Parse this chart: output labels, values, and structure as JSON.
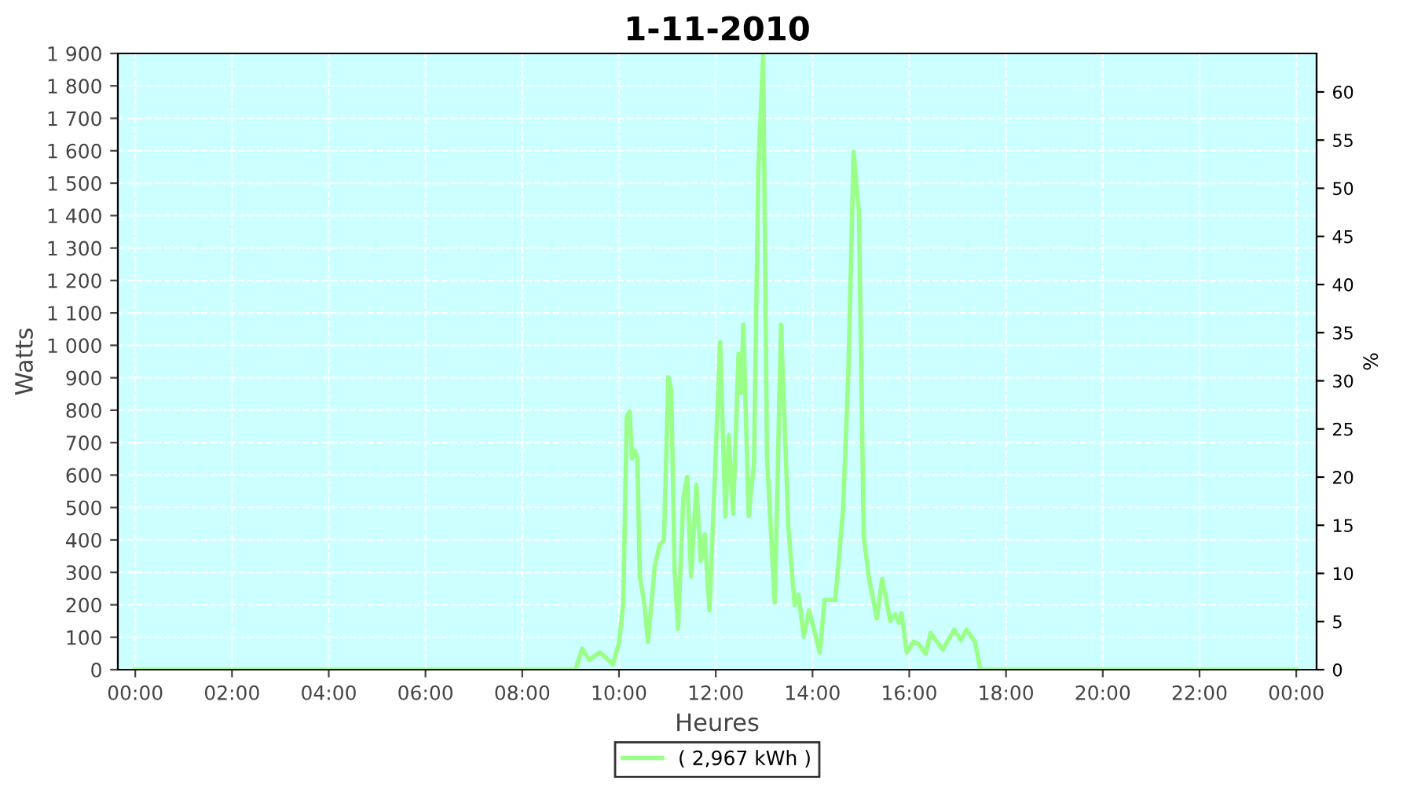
{
  "chart_data": {
    "type": "line",
    "title": "1-11-2010",
    "xlabel": "Heures",
    "ylabel": "Watts",
    "y2label": "%",
    "series": [
      {
        "name": "( 2,967 kWh )",
        "color": "#99ff88",
        "x": [
          0,
          9.0,
          9.1,
          9.24,
          9.38,
          9.6,
          9.71,
          9.87,
          10.0,
          10.09,
          10.16,
          10.22,
          10.27,
          10.33,
          10.38,
          10.43,
          10.52,
          10.6,
          10.74,
          10.84,
          10.93,
          11.02,
          11.08,
          11.15,
          11.22,
          11.33,
          11.41,
          11.49,
          11.6,
          11.69,
          11.77,
          11.87,
          11.95,
          12.09,
          12.2,
          12.27,
          12.36,
          12.47,
          12.52,
          12.57,
          12.68,
          12.79,
          12.88,
          12.98,
          13.06,
          13.22,
          13.35,
          13.5,
          13.63,
          13.71,
          13.82,
          13.93,
          14.15,
          14.25,
          14.47,
          14.63,
          14.74,
          14.85,
          14.96,
          15.06,
          15.17,
          15.33,
          15.44,
          15.61,
          15.71,
          15.79,
          15.84,
          15.95,
          16.09,
          16.2,
          16.34,
          16.44,
          16.69,
          16.93,
          17.07,
          17.18,
          17.36,
          17.47,
          24.0
        ],
        "values": [
          0,
          0,
          0,
          65,
          30,
          53,
          40,
          16,
          82,
          208,
          780,
          796,
          651,
          675,
          651,
          287,
          208,
          86,
          320,
          384,
          400,
          902,
          861,
          304,
          126,
          530,
          595,
          287,
          570,
          336,
          417,
          183,
          481,
          1010,
          473,
          724,
          481,
          974,
          853,
          1063,
          473,
          635,
          1540,
          1895,
          651,
          207,
          1063,
          441,
          199,
          231,
          102,
          183,
          53,
          215,
          215,
          490,
          910,
          1596,
          1410,
          409,
          280,
          158,
          280,
          150,
          171,
          145,
          174,
          53,
          86,
          78,
          48,
          113,
          62,
          123,
          91,
          123,
          86,
          0,
          0
        ]
      }
    ],
    "xlim": [
      -0.36,
      24.42
    ],
    "xticks": [
      {
        "value": 0,
        "label": "00:00"
      },
      {
        "value": 2,
        "label": "02:00"
      },
      {
        "value": 4,
        "label": "04:00"
      },
      {
        "value": 6,
        "label": "06:00"
      },
      {
        "value": 8,
        "label": "08:00"
      },
      {
        "value": 10,
        "label": "10:00"
      },
      {
        "value": 12,
        "label": "12:00"
      },
      {
        "value": 14,
        "label": "14:00"
      },
      {
        "value": 16,
        "label": "16:00"
      },
      {
        "value": 18,
        "label": "18:00"
      },
      {
        "value": 20,
        "label": "20:00"
      },
      {
        "value": 22,
        "label": "22:00"
      },
      {
        "value": 24,
        "label": "00:00"
      }
    ],
    "ylim": [
      0,
      1900
    ],
    "yticks": [
      0,
      100,
      200,
      300,
      400,
      500,
      600,
      700,
      800,
      900,
      {
        "value": 1000,
        "label": "1 000"
      },
      {
        "value": 1100,
        "label": "1 100"
      },
      {
        "value": 1200,
        "label": "1 200"
      },
      {
        "value": 1300,
        "label": "1 300"
      },
      {
        "value": 1400,
        "label": "1 400"
      },
      {
        "value": 1500,
        "label": "1 500"
      },
      {
        "value": 1600,
        "label": "1 600"
      },
      {
        "value": 1700,
        "label": "1 700"
      },
      {
        "value": 1800,
        "label": "1 800"
      },
      {
        "value": 1900,
        "label": "1 900"
      }
    ],
    "y2lim": [
      0,
      64
    ],
    "y2ticks": [
      0,
      5,
      10,
      15,
      20,
      25,
      30,
      35,
      40,
      45,
      50,
      55,
      60
    ],
    "grid": true,
    "legend": "bottom",
    "marker": "none",
    "line_style": "solid"
  }
}
